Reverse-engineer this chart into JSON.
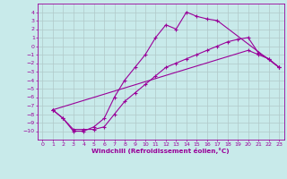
{
  "xlabel": "Windchill (Refroidissement éolien,°C)",
  "bg_color": "#c8eaea",
  "line_color": "#990099",
  "grid_color": "#b0c8c8",
  "xlim": [
    -0.5,
    23.5
  ],
  "ylim": [
    -11,
    5
  ],
  "xticks": [
    0,
    1,
    2,
    3,
    4,
    5,
    6,
    7,
    8,
    9,
    10,
    11,
    12,
    13,
    14,
    15,
    16,
    17,
    18,
    19,
    20,
    21,
    22,
    23
  ],
  "yticks": [
    4,
    3,
    2,
    1,
    0,
    -1,
    -2,
    -3,
    -4,
    -5,
    -6,
    -7,
    -8,
    -9,
    -10
  ],
  "line1_x": [
    1,
    2,
    3,
    4,
    5,
    6,
    7,
    8,
    9,
    10,
    11,
    12,
    13,
    14,
    15,
    16,
    17,
    23
  ],
  "line1_y": [
    -7.5,
    -8.5,
    -10.0,
    -10.0,
    -9.5,
    -8.5,
    -6.0,
    -4.0,
    -2.5,
    -1.0,
    1.0,
    2.5,
    2.0,
    4.0,
    3.5,
    3.2,
    3.0,
    -2.5
  ],
  "line2_x": [
    1,
    20,
    21,
    22,
    23
  ],
  "line2_y": [
    -7.5,
    -0.5,
    -1.0,
    -1.5,
    -2.5
  ],
  "line3_x": [
    1,
    2,
    3,
    4,
    5,
    6,
    7,
    8,
    9,
    10,
    11,
    12,
    13,
    14,
    15,
    16,
    17,
    18,
    19,
    20,
    21,
    22,
    23
  ],
  "line3_y": [
    -7.5,
    -8.5,
    -9.8,
    -9.8,
    -9.8,
    -9.5,
    -8.0,
    -6.5,
    -5.5,
    -4.5,
    -3.5,
    -2.5,
    -2.0,
    -1.5,
    -1.0,
    -0.5,
    0.0,
    0.5,
    0.8,
    1.0,
    -0.8,
    -1.5,
    -2.5
  ]
}
